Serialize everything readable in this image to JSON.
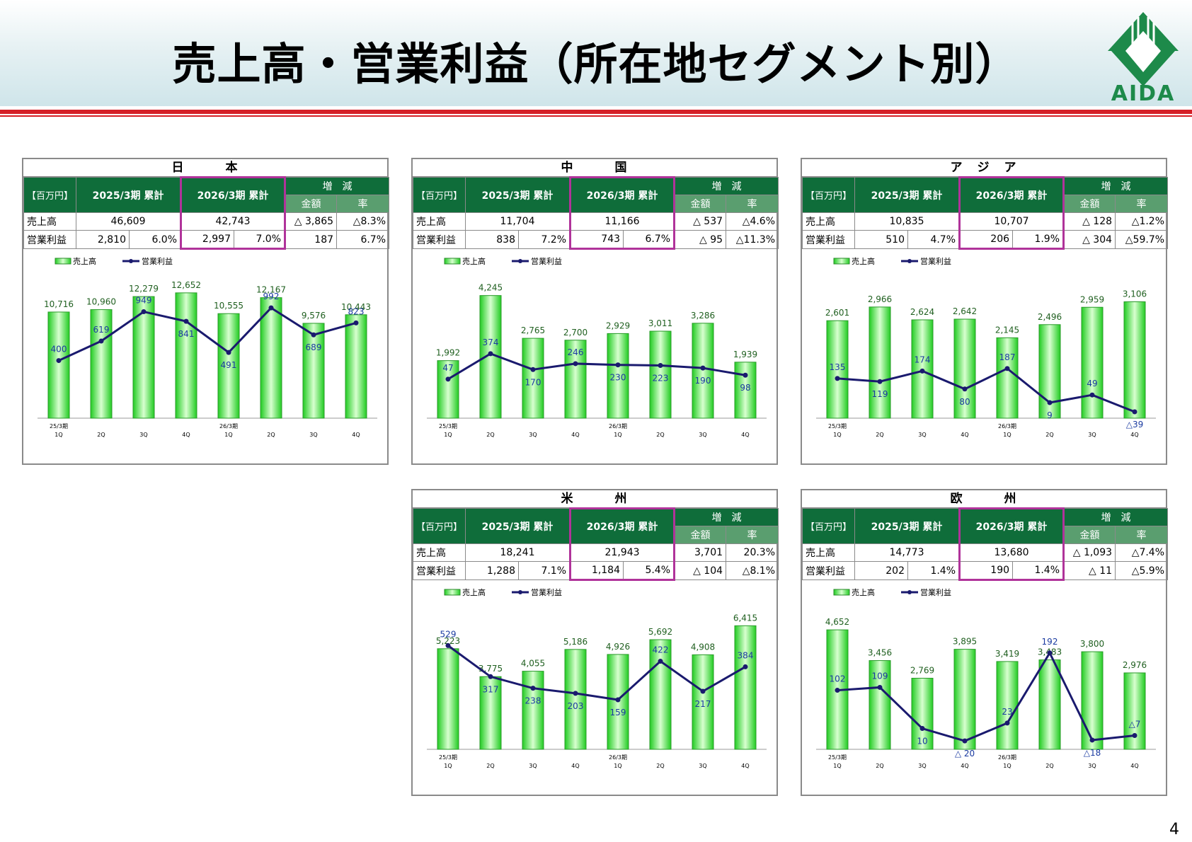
{
  "page": {
    "title": "売上高・営業利益（所在地セグメント別）",
    "logo_text": "AIDA",
    "page_number": "4"
  },
  "colors": {
    "header_green": "#0f6d3a",
    "sub_header_green": "#5a9e6f",
    "highlight_magenta": "#b0339a",
    "bar_green": "#33dd33",
    "line_navy": "#1a1a6e",
    "title_red_rule": "#d51f26"
  },
  "table_headers": {
    "unit": "【百万円】",
    "prev": "2025/3期 累計",
    "curr": "2026/3期 累計",
    "change": "増　減",
    "amount": "金額",
    "rate": "率",
    "sales": "売上高",
    "op_income": "営業利益"
  },
  "legend": {
    "sales": "売上高",
    "op_income": "営業利益"
  },
  "segments": [
    {
      "name": "日　　　本",
      "sales": {
        "prev": "46,609",
        "curr": "42,743",
        "diff": "△ 3,865",
        "rate": "△8.3%"
      },
      "op": {
        "prev": "2,810",
        "prev_margin": "6.0%",
        "curr": "2,997",
        "curr_margin": "7.0%",
        "diff": "187",
        "rate": "6.7%"
      }
    },
    {
      "name": "中　　　国",
      "sales": {
        "prev": "11,704",
        "curr": "11,166",
        "diff": "△ 537",
        "rate": "△4.6%"
      },
      "op": {
        "prev": "838",
        "prev_margin": "7.2%",
        "curr": "743",
        "curr_margin": "6.7%",
        "diff": "△ 95",
        "rate": "△11.3%"
      }
    },
    {
      "name": "ア　ジ　ア",
      "sales": {
        "prev": "10,835",
        "curr": "10,707",
        "diff": "△ 128",
        "rate": "△1.2%"
      },
      "op": {
        "prev": "510",
        "prev_margin": "4.7%",
        "curr": "206",
        "curr_margin": "1.9%",
        "diff": "△ 304",
        "rate": "△59.7%"
      }
    },
    {
      "name": "米　　　州",
      "sales": {
        "prev": "18,241",
        "curr": "21,943",
        "diff": "3,701",
        "rate": "20.3%"
      },
      "op": {
        "prev": "1,288",
        "prev_margin": "7.1%",
        "curr": "1,184",
        "curr_margin": "5.4%",
        "diff": "△ 104",
        "rate": "△8.1%"
      }
    },
    {
      "name": "欧　　　州",
      "sales": {
        "prev": "14,773",
        "curr": "13,680",
        "diff": "△ 1,093",
        "rate": "△7.4%"
      },
      "op": {
        "prev": "202",
        "prev_margin": "1.4%",
        "curr": "190",
        "curr_margin": "1.4%",
        "diff": "△ 11",
        "rate": "△5.9%"
      }
    }
  ],
  "chart_data": [
    {
      "type": "bar",
      "segment": "日本",
      "categories": [
        [
          "25/3期",
          "1Q"
        ],
        [
          "",
          "2Q"
        ],
        [
          "",
          "3Q"
        ],
        [
          "",
          "4Q"
        ],
        [
          "26/3期",
          "1Q"
        ],
        [
          "",
          "2Q"
        ],
        [
          "",
          "3Q"
        ],
        [
          "",
          "4Q"
        ]
      ],
      "series": [
        {
          "name": "売上高",
          "type": "bar",
          "values": [
            10716,
            10960,
            12279,
            12652,
            10555,
            12167,
            9576,
            10443
          ],
          "labels": [
            "10,716",
            "10,960",
            "12,279",
            "12,652",
            "10,555",
            "12,167",
            "9,576",
            "10,443"
          ]
        },
        {
          "name": "営業利益",
          "type": "line",
          "values": [
            400,
            619,
            949,
            841,
            491,
            992,
            689,
            823
          ],
          "labels": [
            "400",
            "619",
            "949",
            "841",
            "491",
            "992",
            "689",
            "823"
          ]
        }
      ],
      "bar_max": 14000,
      "line_range": [
        -200,
        1200
      ]
    },
    {
      "type": "bar",
      "segment": "中国",
      "categories": [
        [
          "25/3期",
          "1Q"
        ],
        [
          "",
          "2Q"
        ],
        [
          "",
          "3Q"
        ],
        [
          "",
          "4Q"
        ],
        [
          "26/3期",
          "1Q"
        ],
        [
          "",
          "2Q"
        ],
        [
          "",
          "3Q"
        ],
        [
          "",
          "4Q"
        ]
      ],
      "series": [
        {
          "name": "売上高",
          "type": "bar",
          "values": [
            1992,
            4245,
            2765,
            2700,
            2929,
            3011,
            3286,
            1939
          ],
          "labels": [
            "1,992",
            "4,245",
            "2,765",
            "2,700",
            "2,929",
            "3,011",
            "3,286",
            "1,939"
          ]
        },
        {
          "name": "営業利益",
          "type": "line",
          "values": [
            47,
            374,
            170,
            246,
            230,
            223,
            190,
            98
          ],
          "labels": [
            "47",
            "374",
            "170",
            "246",
            "230",
            "223",
            "190",
            "98"
          ]
        }
      ],
      "bar_max": 4800,
      "line_range": [
        -400,
        1200
      ]
    },
    {
      "type": "bar",
      "segment": "アジア",
      "categories": [
        [
          "25/3期",
          "1Q"
        ],
        [
          "",
          "2Q"
        ],
        [
          "",
          "3Q"
        ],
        [
          "",
          "4Q"
        ],
        [
          "26/3期",
          "1Q"
        ],
        [
          "",
          "2Q"
        ],
        [
          "",
          "3Q"
        ],
        [
          "",
          "4Q"
        ]
      ],
      "series": [
        {
          "name": "売上高",
          "type": "bar",
          "values": [
            2601,
            2966,
            2624,
            2642,
            2145,
            2496,
            2959,
            3106
          ],
          "labels": [
            "2,601",
            "2,966",
            "2,624",
            "2,642",
            "2,145",
            "2,496",
            "2,959",
            "3,106"
          ]
        },
        {
          "name": "営業利益",
          "type": "line",
          "values": [
            135,
            119,
            174,
            80,
            187,
            9,
            49,
            -39
          ],
          "labels": [
            "135",
            "119",
            "174",
            "80",
            "187",
            "9",
            "49",
            "△39"
          ]
        }
      ],
      "bar_max": 3700,
      "line_range": [
        -50,
        600
      ]
    },
    {
      "type": "bar",
      "segment": "米州",
      "categories": [
        [
          "25/3期",
          "1Q"
        ],
        [
          "",
          "2Q"
        ],
        [
          "",
          "3Q"
        ],
        [
          "",
          "4Q"
        ],
        [
          "26/3期",
          "1Q"
        ],
        [
          "",
          "2Q"
        ],
        [
          "",
          "3Q"
        ],
        [
          "",
          "4Q"
        ]
      ],
      "series": [
        {
          "name": "売上高",
          "type": "bar",
          "values": [
            5223,
            3775,
            4055,
            5186,
            4926,
            5692,
            4908,
            6415
          ],
          "labels": [
            "5,223",
            "3,775",
            "4,055",
            "5,186",
            "4,926",
            "5,692",
            "4,908",
            "6,415"
          ]
        },
        {
          "name": "営業利益",
          "type": "line",
          "values": [
            529,
            317,
            238,
            203,
            159,
            422,
            217,
            384
          ],
          "labels": [
            "529",
            "317",
            "238",
            "203",
            "159",
            "422",
            "217",
            "384"
          ]
        }
      ],
      "bar_max": 7200,
      "line_range": [
        -150,
        700
      ]
    },
    {
      "type": "bar",
      "segment": "欧州",
      "categories": [
        [
          "25/3期",
          "1Q"
        ],
        [
          "",
          "2Q"
        ],
        [
          "",
          "3Q"
        ],
        [
          "",
          "4Q"
        ],
        [
          "26/3期",
          "1Q"
        ],
        [
          "",
          "2Q"
        ],
        [
          "",
          "3Q"
        ],
        [
          "",
          "4Q"
        ]
      ],
      "series": [
        {
          "name": "売上高",
          "type": "bar",
          "values": [
            4652,
            3456,
            2769,
            3895,
            3419,
            3483,
            3800,
            2976
          ],
          "labels": [
            "4,652",
            "3,456",
            "2,769",
            "3,895",
            "3,419",
            "3,483",
            "3,800",
            "2,976"
          ]
        },
        {
          "name": "営業利益",
          "type": "line",
          "values": [
            102,
            109,
            10,
            -20,
            23,
            192,
            -18,
            -7
          ],
          "labels": [
            "102",
            "109",
            "10",
            "△ 20",
            "23",
            "192",
            "△18",
            "△7"
          ]
        }
      ],
      "bar_max": 5400,
      "line_range": [
        -30,
        270
      ]
    }
  ]
}
